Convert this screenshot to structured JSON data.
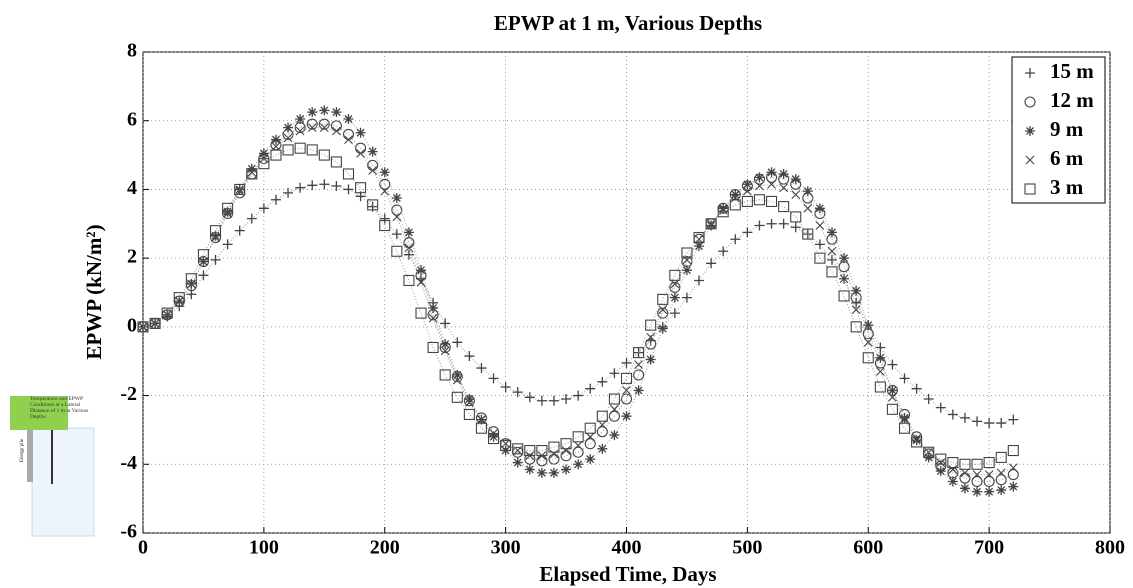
{
  "chart_data": {
    "type": "scatter",
    "title": "EPWP at 1 m, Various Depths",
    "xlabel": "Elapsed Time, Days",
    "ylabel": "EPWP (kN/m²)",
    "xlim": [
      0,
      800
    ],
    "ylim": [
      -6,
      8
    ],
    "xticks": [
      0,
      100,
      200,
      300,
      400,
      500,
      600,
      700,
      800
    ],
    "yticks": [
      -6,
      -4,
      -2,
      0,
      2,
      4,
      6,
      8
    ],
    "grid": true,
    "legend": "upper right",
    "x": [
      0,
      10,
      20,
      30,
      40,
      50,
      60,
      70,
      80,
      90,
      100,
      110,
      120,
      130,
      140,
      150,
      160,
      170,
      180,
      190,
      200,
      210,
      220,
      230,
      240,
      250,
      260,
      270,
      280,
      290,
      300,
      310,
      320,
      330,
      340,
      350,
      360,
      370,
      380,
      390,
      400,
      410,
      420,
      430,
      440,
      450,
      460,
      470,
      480,
      490,
      500,
      510,
      520,
      530,
      540,
      550,
      560,
      570,
      580,
      590,
      600,
      610,
      620,
      630,
      640,
      650,
      660,
      670,
      680,
      690,
      700,
      710,
      720
    ],
    "series": [
      {
        "name": "15 m",
        "marker": "plus",
        "color": "#444444",
        "values": [
          0,
          0.1,
          0.3,
          0.6,
          0.95,
          1.5,
          1.95,
          2.4,
          2.8,
          3.15,
          3.45,
          3.7,
          3.9,
          4.05,
          4.12,
          4.15,
          4.1,
          4,
          3.8,
          3.5,
          3.15,
          2.7,
          2.1,
          1.4,
          0.7,
          0.1,
          -0.45,
          -0.85,
          -1.2,
          -1.5,
          -1.75,
          -1.9,
          -2.05,
          -2.15,
          -2.15,
          -2.1,
          -2,
          -1.8,
          -1.6,
          -1.35,
          -1.05,
          -0.75,
          -0.4,
          0,
          0.4,
          0.85,
          1.35,
          1.85,
          2.2,
          2.55,
          2.75,
          2.95,
          3,
          3,
          2.9,
          2.7,
          2.4,
          1.95,
          1.4,
          0.7,
          0.05,
          -0.6,
          -1.1,
          -1.5,
          -1.8,
          -2.1,
          -2.35,
          -2.55,
          -2.65,
          -2.75,
          -2.8,
          -2.8,
          -2.7
        ]
      },
      {
        "name": "12 m",
        "marker": "circle",
        "color": "#444444",
        "values": [
          0,
          0.1,
          0.35,
          0.75,
          1.2,
          1.9,
          2.6,
          3.3,
          3.9,
          4.45,
          4.9,
          5.3,
          5.6,
          5.8,
          5.9,
          5.9,
          5.85,
          5.6,
          5.2,
          4.7,
          4.15,
          3.4,
          2.45,
          1.5,
          0.35,
          -0.6,
          -1.45,
          -2.15,
          -2.65,
          -3.05,
          -3.4,
          -3.65,
          -3.85,
          -3.9,
          -3.85,
          -3.75,
          -3.65,
          -3.4,
          -3.05,
          -2.6,
          -2.1,
          -1.4,
          -0.5,
          0.4,
          1.15,
          1.9,
          2.55,
          3,
          3.45,
          3.85,
          4.1,
          4.3,
          4.35,
          4.3,
          4.15,
          3.75,
          3.3,
          2.55,
          1.75,
          0.85,
          -0.2,
          -1.05,
          -1.85,
          -2.55,
          -3.2,
          -3.7,
          -4.05,
          -4.25,
          -4.4,
          -4.5,
          -4.5,
          -4.45,
          -4.3
        ]
      },
      {
        "name": "9 m",
        "marker": "star",
        "color": "#444444",
        "values": [
          0,
          0.1,
          0.35,
          0.75,
          1.25,
          1.9,
          2.65,
          3.35,
          4,
          4.6,
          5.05,
          5.45,
          5.8,
          6.05,
          6.25,
          6.3,
          6.25,
          6.05,
          5.65,
          5.1,
          4.5,
          3.75,
          2.75,
          1.65,
          0.55,
          -0.5,
          -1.4,
          -2.1,
          -2.7,
          -3.2,
          -3.6,
          -3.95,
          -4.15,
          -4.25,
          -4.25,
          -4.15,
          -4,
          -3.85,
          -3.55,
          -3.15,
          -2.6,
          -1.85,
          -0.95,
          -0.05,
          0.85,
          1.65,
          2.35,
          2.95,
          3.45,
          3.85,
          4.15,
          4.35,
          4.5,
          4.45,
          4.3,
          3.95,
          3.45,
          2.75,
          2,
          1.05,
          0.05,
          -0.9,
          -1.85,
          -2.65,
          -3.3,
          -3.8,
          -4.2,
          -4.5,
          -4.7,
          -4.8,
          -4.8,
          -4.75,
          -4.65
        ]
      },
      {
        "name": "6 m",
        "marker": "cross",
        "color": "#444444",
        "values": [
          0,
          0.1,
          0.35,
          0.75,
          1.25,
          1.9,
          2.6,
          3.3,
          3.95,
          4.5,
          4.9,
          5.25,
          5.5,
          5.7,
          5.8,
          5.8,
          5.7,
          5.45,
          5.05,
          4.55,
          3.95,
          3.2,
          2.3,
          1.3,
          0.25,
          -0.7,
          -1.55,
          -2.2,
          -2.7,
          -3.1,
          -3.4,
          -3.6,
          -3.75,
          -3.75,
          -3.7,
          -3.6,
          -3.45,
          -3.2,
          -2.85,
          -2.4,
          -1.85,
          -1.1,
          -0.3,
          0.5,
          1.25,
          1.95,
          2.55,
          3,
          3.4,
          3.75,
          3.95,
          4.1,
          4.15,
          4.05,
          3.85,
          3.45,
          2.95,
          2.2,
          1.4,
          0.5,
          -0.45,
          -1.3,
          -2.05,
          -2.7,
          -3.25,
          -3.65,
          -3.95,
          -4.15,
          -4.25,
          -4.3,
          -4.3,
          -4.25,
          -4.1
        ]
      },
      {
        "name": "3 m",
        "marker": "square",
        "color": "#444444",
        "values": [
          0,
          0.1,
          0.4,
          0.85,
          1.4,
          2.1,
          2.8,
          3.45,
          4,
          4.45,
          4.75,
          5,
          5.15,
          5.2,
          5.15,
          5,
          4.8,
          4.45,
          4.05,
          3.55,
          2.95,
          2.2,
          1.35,
          0.4,
          -0.6,
          -1.4,
          -2.05,
          -2.55,
          -2.95,
          -3.25,
          -3.45,
          -3.55,
          -3.6,
          -3.6,
          -3.5,
          -3.4,
          -3.2,
          -2.95,
          -2.6,
          -2.1,
          -1.5,
          -0.75,
          0.05,
          0.8,
          1.5,
          2.15,
          2.6,
          3,
          3.35,
          3.55,
          3.65,
          3.7,
          3.65,
          3.5,
          3.2,
          2.7,
          2,
          1.6,
          0.9,
          0,
          -0.9,
          -1.75,
          -2.4,
          -2.95,
          -3.35,
          -3.65,
          -3.85,
          -3.95,
          -4,
          -4,
          -3.95,
          -3.8,
          -3.6
        ]
      }
    ]
  },
  "inset": {
    "caption": "Temperature and EPWP Conditions at a Lateral Distance of 1 m at Various Depths",
    "pile_label": "Energy pile"
  }
}
